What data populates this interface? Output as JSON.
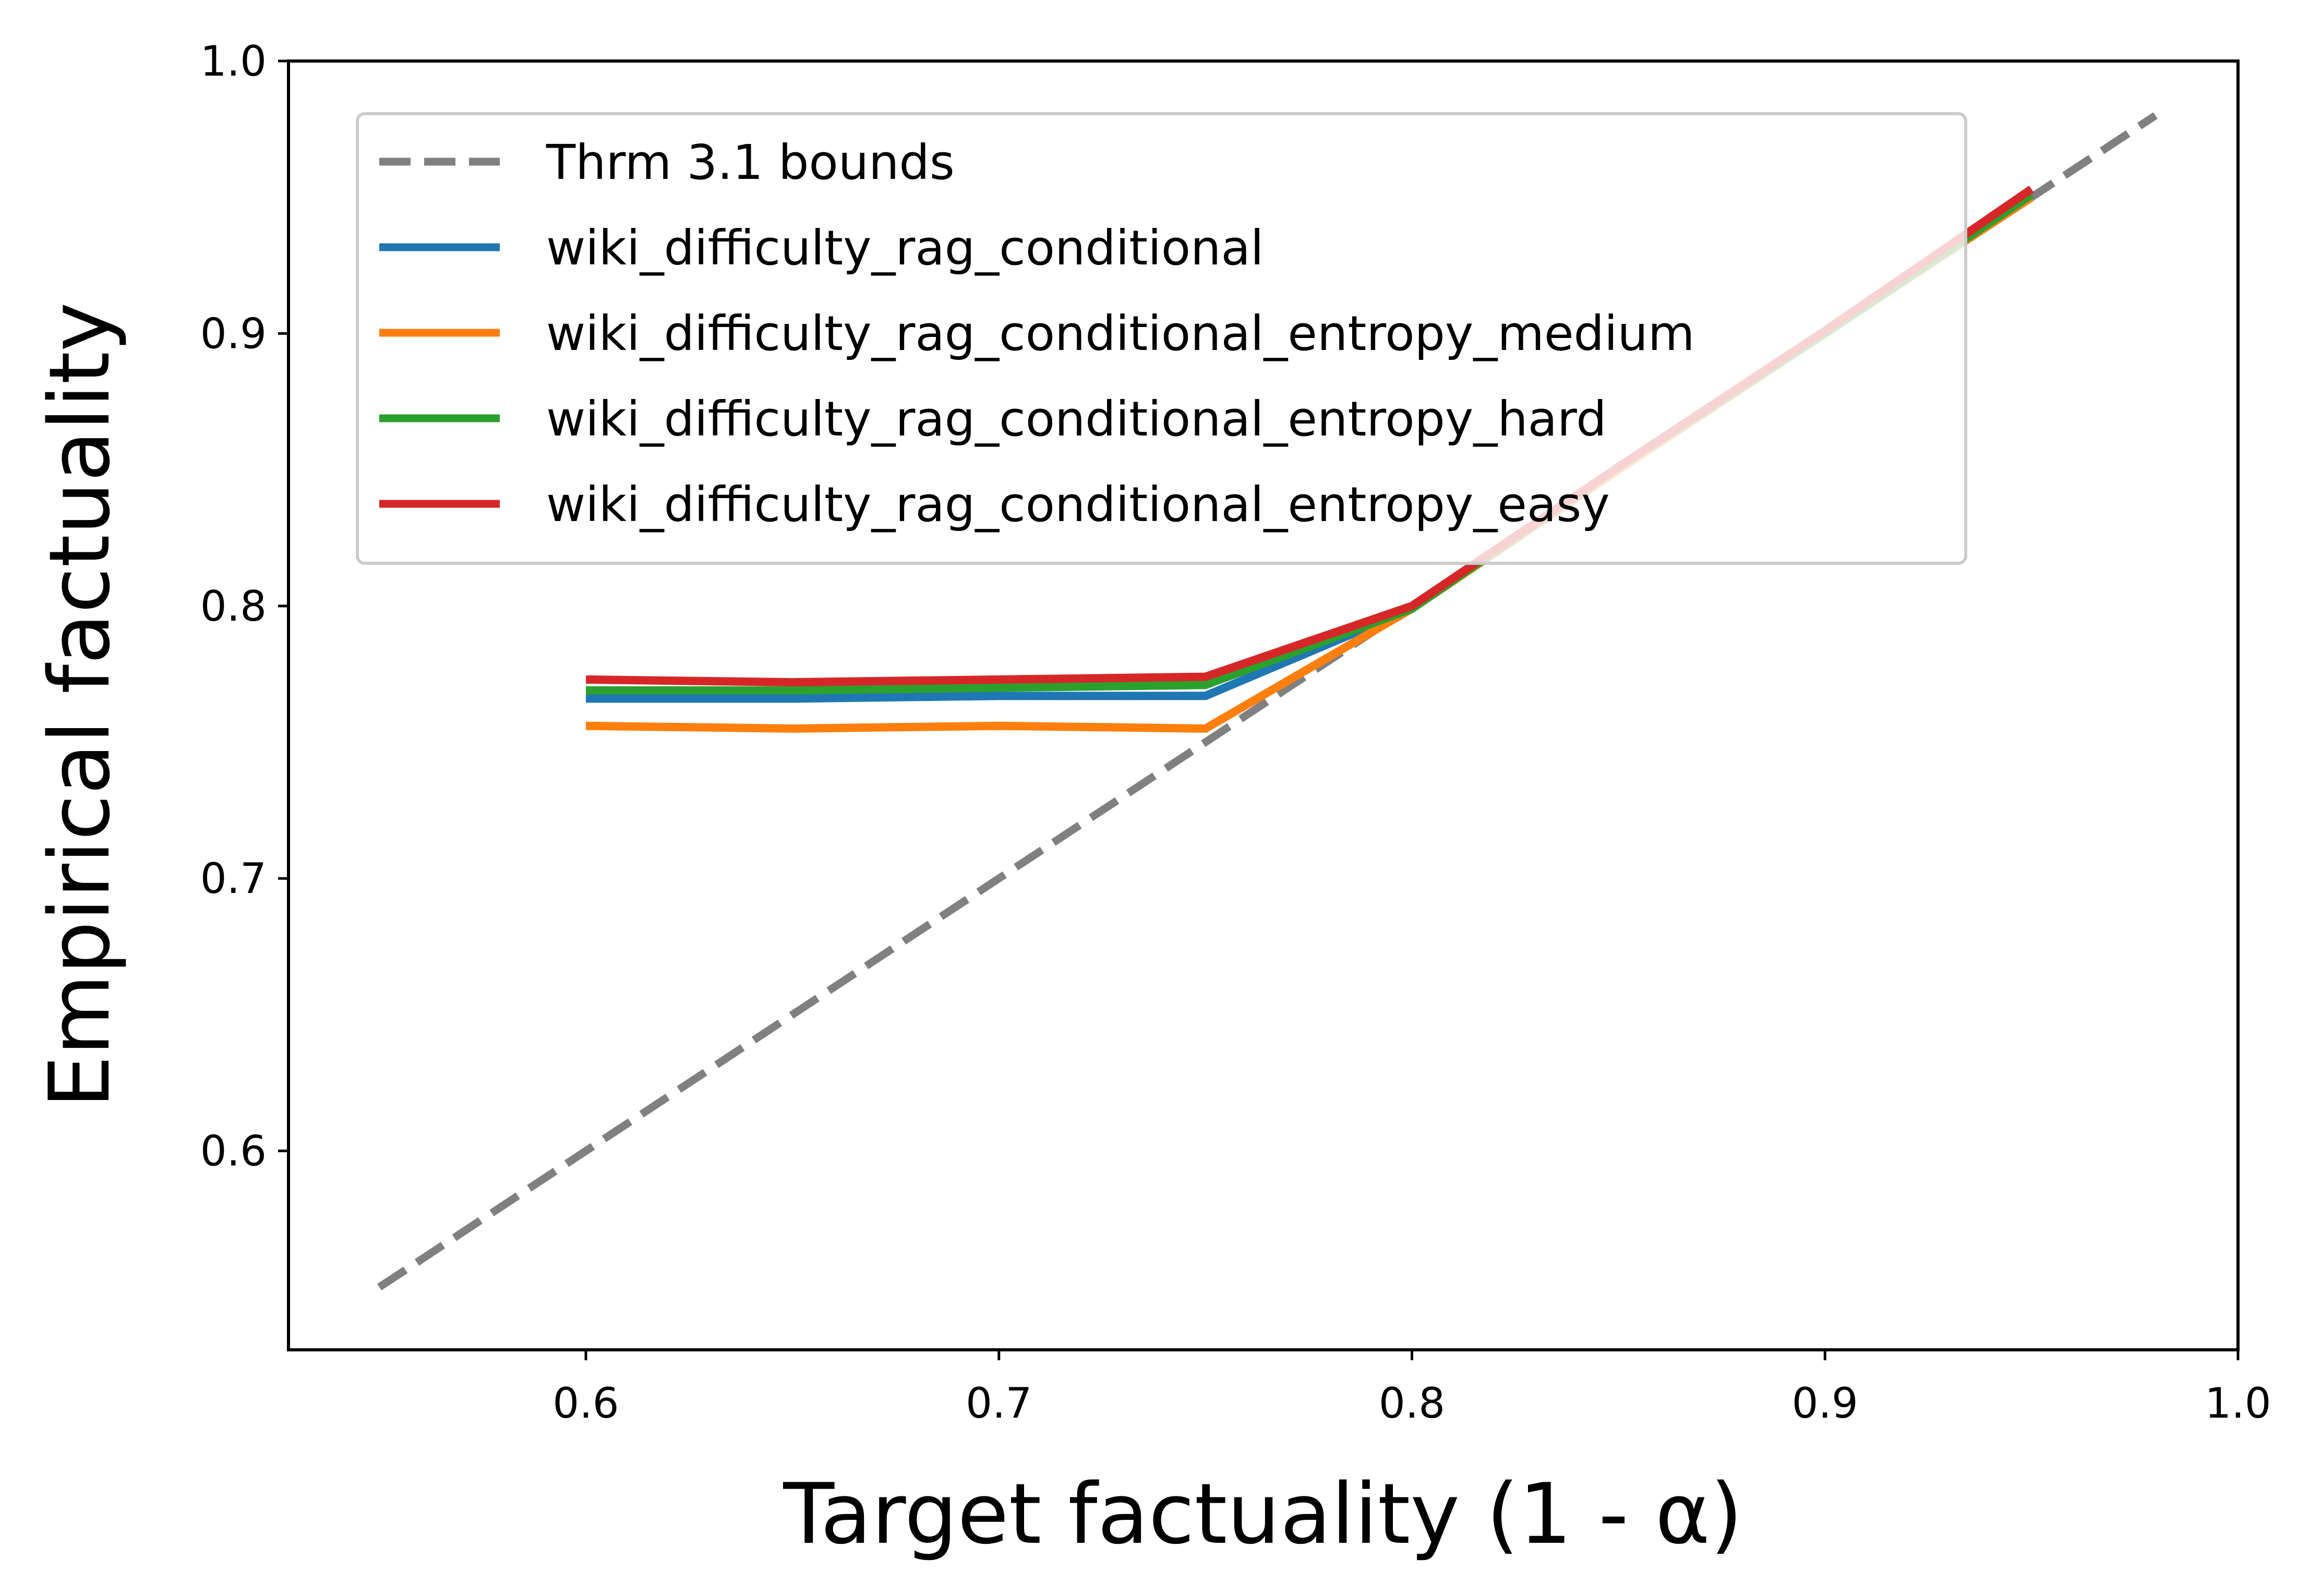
{
  "chart_data": {
    "type": "line",
    "xlabel": "Target factuality (1 - α)",
    "ylabel": "Empirical factuality",
    "xlim": [
      0.528,
      1.0
    ],
    "ylim": [
      0.527,
      1.0
    ],
    "xticks": [
      0.6,
      0.7,
      0.8,
      0.9,
      1.0
    ],
    "yticks": [
      0.6,
      0.7,
      0.8,
      0.9,
      1.0
    ],
    "xtick_labels": [
      "0.6",
      "0.7",
      "0.8",
      "0.9",
      "1.0"
    ],
    "ytick_labels": [
      "0.6",
      "0.7",
      "0.8",
      "0.9",
      "1.0"
    ],
    "grid": false,
    "legend_position": "upper-left",
    "series": [
      {
        "name": "Thrm 3.1 bounds",
        "color": "#808080",
        "dashed": true,
        "x": [
          0.55,
          0.98
        ],
        "y": [
          0.55,
          0.98
        ]
      },
      {
        "name": "wiki_difficulty_rag_conditional",
        "color": "#1f77b4",
        "dashed": false,
        "x": [
          0.6,
          0.65,
          0.7,
          0.75,
          0.8,
          0.85,
          0.9,
          0.95
        ],
        "y": [
          0.766,
          0.766,
          0.767,
          0.767,
          0.799,
          0.85,
          0.9,
          0.95
        ]
      },
      {
        "name": "wiki_difficulty_rag_conditional_entropy_medium",
        "color": "#ff7f0e",
        "dashed": false,
        "x": [
          0.6,
          0.65,
          0.7,
          0.75,
          0.8,
          0.85,
          0.9,
          0.95
        ],
        "y": [
          0.756,
          0.755,
          0.756,
          0.755,
          0.799,
          0.85,
          0.9,
          0.95
        ]
      },
      {
        "name": "wiki_difficulty_rag_conditional_entropy_hard",
        "color": "#2ca02c",
        "dashed": false,
        "x": [
          0.6,
          0.65,
          0.7,
          0.75,
          0.8,
          0.85,
          0.9,
          0.95
        ],
        "y": [
          0.769,
          0.769,
          0.77,
          0.771,
          0.799,
          0.851,
          0.9,
          0.951
        ]
      },
      {
        "name": "wiki_difficulty_rag_conditional_entropy_easy",
        "color": "#d62728",
        "dashed": false,
        "x": [
          0.6,
          0.65,
          0.7,
          0.75,
          0.8,
          0.85,
          0.9,
          0.95
        ],
        "y": [
          0.773,
          0.772,
          0.773,
          0.774,
          0.8,
          0.851,
          0.901,
          0.953
        ]
      }
    ]
  }
}
